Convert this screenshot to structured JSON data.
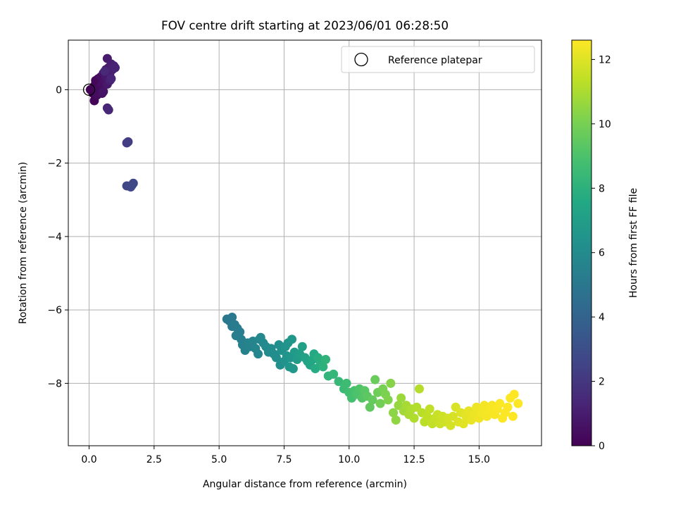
{
  "chart_data": {
    "type": "scatter",
    "title": "FOV centre drift starting at 2023/06/01 06:28:50",
    "xlabel": "Angular distance from reference (arcmin)",
    "ylabel": "Rotation from reference (arcmin)",
    "xlim": [
      -0.8,
      17.4
    ],
    "ylim": [
      -9.7,
      1.35
    ],
    "xticks": [
      0.0,
      2.5,
      5.0,
      7.5,
      10.0,
      12.5,
      15.0
    ],
    "xtick_labels": [
      "0.0",
      "2.5",
      "5.0",
      "7.5",
      "10.0",
      "12.5",
      "15.0"
    ],
    "yticks": [
      0,
      -2,
      -4,
      -6,
      -8
    ],
    "ytick_labels": [
      "0",
      "−2",
      "−4",
      "−6",
      "−8"
    ],
    "grid": true,
    "legend_position": "upper right",
    "legend_entries": [
      "Reference platepar"
    ],
    "reference_point": {
      "x": 0.0,
      "y": 0.0,
      "marker": "open circle"
    },
    "colorbar": {
      "label": "Hours from first FF file",
      "colormap": "viridis",
      "range": [
        0,
        12.6
      ],
      "ticks": [
        0,
        2,
        4,
        6,
        8,
        10,
        12
      ],
      "tick_labels": [
        "0",
        "2",
        "4",
        "6",
        "8",
        "10",
        "12"
      ]
    },
    "series": [
      {
        "color_value": "hours",
        "points": [
          [
            0.05,
            0.0,
            0.0
          ],
          [
            0.15,
            -0.1,
            0.05
          ],
          [
            0.2,
            0.1,
            0.1
          ],
          [
            0.2,
            -0.3,
            0.15
          ],
          [
            0.25,
            0.25,
            0.2
          ],
          [
            0.3,
            0.0,
            0.25
          ],
          [
            0.35,
            0.3,
            0.3
          ],
          [
            0.3,
            -0.15,
            0.35
          ],
          [
            0.4,
            0.05,
            0.4
          ],
          [
            0.45,
            0.35,
            0.45
          ],
          [
            0.5,
            0.15,
            0.5
          ],
          [
            0.5,
            -0.1,
            0.55
          ],
          [
            0.55,
            0.45,
            0.6
          ],
          [
            0.6,
            0.25,
            0.65
          ],
          [
            0.55,
            -0.05,
            0.7
          ],
          [
            0.65,
            0.55,
            0.75
          ],
          [
            0.65,
            0.35,
            0.8
          ],
          [
            0.7,
            0.15,
            0.85
          ],
          [
            0.75,
            0.6,
            0.9
          ],
          [
            0.7,
            0.85,
            0.95
          ],
          [
            0.8,
            0.45,
            1.0
          ],
          [
            0.85,
            0.7,
            1.05
          ],
          [
            0.8,
            0.25,
            1.1
          ],
          [
            0.9,
            0.55,
            1.15
          ],
          [
            0.95,
            0.65,
            1.2
          ],
          [
            1.0,
            0.6,
            1.25
          ],
          [
            0.85,
            0.3,
            1.3
          ],
          [
            0.7,
            -0.5,
            1.35
          ],
          [
            0.75,
            -0.55,
            1.4
          ],
          [
            0.6,
            0.5,
            1.45
          ],
          [
            1.45,
            -1.45,
            2.2
          ],
          [
            1.5,
            -1.42,
            2.25
          ],
          [
            1.45,
            -2.62,
            2.6
          ],
          [
            1.6,
            -2.65,
            2.65
          ],
          [
            1.7,
            -2.55,
            2.7
          ],
          [
            1.65,
            -2.6,
            2.75
          ],
          [
            5.3,
            -6.25,
            5.0
          ],
          [
            5.4,
            -6.3,
            5.05
          ],
          [
            5.5,
            -6.2,
            5.1
          ],
          [
            5.5,
            -6.45,
            5.15
          ],
          [
            5.6,
            -6.4,
            5.2
          ],
          [
            5.7,
            -6.5,
            5.25
          ],
          [
            5.65,
            -6.7,
            5.3
          ],
          [
            5.8,
            -6.6,
            5.35
          ],
          [
            5.85,
            -6.8,
            5.4
          ],
          [
            5.9,
            -6.95,
            5.45
          ],
          [
            6.0,
            -7.1,
            5.5
          ],
          [
            6.1,
            -6.9,
            5.55
          ],
          [
            6.2,
            -7.0,
            5.6
          ],
          [
            6.3,
            -6.85,
            5.65
          ],
          [
            6.4,
            -7.05,
            5.7
          ],
          [
            6.5,
            -7.2,
            5.75
          ],
          [
            6.55,
            -6.8,
            5.8
          ],
          [
            6.6,
            -6.75,
            5.85
          ],
          [
            6.7,
            -6.9,
            5.9
          ],
          [
            6.8,
            -7.0,
            5.95
          ],
          [
            6.9,
            -7.15,
            6.0
          ],
          [
            7.0,
            -7.05,
            6.05
          ],
          [
            7.1,
            -7.2,
            6.1
          ],
          [
            7.2,
            -7.3,
            6.15
          ],
          [
            7.3,
            -6.95,
            6.2
          ],
          [
            7.35,
            -7.5,
            6.25
          ],
          [
            7.4,
            -7.1,
            6.3
          ],
          [
            7.5,
            -7.4,
            6.35
          ],
          [
            7.55,
            -7.0,
            6.4
          ],
          [
            7.6,
            -7.25,
            6.45
          ],
          [
            7.65,
            -6.9,
            6.5
          ],
          [
            7.7,
            -7.55,
            6.55
          ],
          [
            7.75,
            -7.3,
            6.6
          ],
          [
            7.8,
            -6.8,
            6.65
          ],
          [
            7.85,
            -7.6,
            6.7
          ],
          [
            7.9,
            -7.15,
            6.8
          ],
          [
            8.0,
            -7.35,
            6.9
          ],
          [
            8.1,
            -7.2,
            7.0
          ],
          [
            8.2,
            -7.0,
            7.1
          ],
          [
            8.3,
            -7.3,
            7.2
          ],
          [
            8.4,
            -7.4,
            7.3
          ],
          [
            8.5,
            -7.5,
            7.4
          ],
          [
            8.6,
            -7.35,
            7.5
          ],
          [
            8.65,
            -7.2,
            7.6
          ],
          [
            8.7,
            -7.6,
            7.7
          ],
          [
            8.8,
            -7.3,
            7.8
          ],
          [
            8.9,
            -7.45,
            7.9
          ],
          [
            9.0,
            -7.55,
            8.0
          ],
          [
            9.1,
            -7.35,
            8.1
          ],
          [
            9.2,
            -7.8,
            8.2
          ],
          [
            9.4,
            -7.75,
            8.3
          ],
          [
            9.6,
            -7.95,
            8.4
          ],
          [
            9.8,
            -8.15,
            8.5
          ],
          [
            9.9,
            -8.0,
            8.6
          ],
          [
            10.0,
            -8.25,
            8.7
          ],
          [
            10.1,
            -8.4,
            8.8
          ],
          [
            10.2,
            -8.2,
            8.9
          ],
          [
            10.3,
            -8.3,
            9.0
          ],
          [
            10.4,
            -8.15,
            9.1
          ],
          [
            10.5,
            -8.4,
            9.2
          ],
          [
            10.6,
            -8.2,
            9.3
          ],
          [
            10.7,
            -8.35,
            9.4
          ],
          [
            10.8,
            -8.65,
            9.5
          ],
          [
            10.9,
            -8.45,
            9.6
          ],
          [
            11.0,
            -7.9,
            9.7
          ],
          [
            11.1,
            -8.25,
            9.8
          ],
          [
            11.2,
            -8.55,
            9.9
          ],
          [
            11.3,
            -8.15,
            10.0
          ],
          [
            11.4,
            -8.3,
            10.1
          ],
          [
            11.5,
            -8.45,
            10.2
          ],
          [
            11.6,
            -8.0,
            10.3
          ],
          [
            11.7,
            -8.8,
            10.4
          ],
          [
            11.8,
            -9.0,
            10.5
          ],
          [
            11.9,
            -8.6,
            10.6
          ],
          [
            12.0,
            -8.4,
            10.7
          ],
          [
            12.1,
            -8.75,
            10.8
          ],
          [
            12.2,
            -8.6,
            10.9
          ],
          [
            12.3,
            -8.85,
            11.0
          ],
          [
            12.4,
            -8.7,
            11.05
          ],
          [
            12.5,
            -8.95,
            11.1
          ],
          [
            12.6,
            -8.65,
            11.15
          ],
          [
            12.7,
            -8.15,
            11.2
          ],
          [
            12.8,
            -8.8,
            11.25
          ],
          [
            12.9,
            -9.05,
            11.3
          ],
          [
            13.0,
            -8.9,
            11.35
          ],
          [
            13.1,
            -8.7,
            11.4
          ],
          [
            13.2,
            -9.1,
            11.45
          ],
          [
            13.3,
            -8.95,
            11.5
          ],
          [
            13.4,
            -8.85,
            11.55
          ],
          [
            13.5,
            -9.1,
            11.6
          ],
          [
            13.6,
            -8.9,
            11.65
          ],
          [
            13.7,
            -9.05,
            11.7
          ],
          [
            13.8,
            -8.95,
            11.75
          ],
          [
            13.9,
            -9.15,
            11.8
          ],
          [
            14.0,
            -8.9,
            11.85
          ],
          [
            14.1,
            -8.65,
            11.9
          ],
          [
            14.2,
            -9.05,
            11.95
          ],
          [
            14.3,
            -8.8,
            12.0
          ],
          [
            14.4,
            -9.1,
            12.05
          ],
          [
            14.5,
            -8.9,
            12.1
          ],
          [
            14.6,
            -8.75,
            12.15
          ],
          [
            14.7,
            -9.0,
            12.2
          ],
          [
            14.8,
            -8.85,
            12.25
          ],
          [
            14.9,
            -8.65,
            12.3
          ],
          [
            15.0,
            -8.95,
            12.35
          ],
          [
            15.1,
            -8.8,
            12.4
          ],
          [
            15.2,
            -8.6,
            12.42
          ],
          [
            15.3,
            -8.9,
            12.44
          ],
          [
            15.4,
            -8.75,
            12.46
          ],
          [
            15.5,
            -8.6,
            12.48
          ],
          [
            15.6,
            -8.85,
            12.5
          ],
          [
            15.7,
            -8.7,
            12.52
          ],
          [
            15.8,
            -8.55,
            12.54
          ],
          [
            15.9,
            -8.95,
            12.56
          ],
          [
            16.0,
            -8.8,
            12.57
          ],
          [
            16.1,
            -8.65,
            12.58
          ],
          [
            16.2,
            -8.4,
            12.59
          ],
          [
            16.3,
            -8.9,
            12.6
          ],
          [
            16.35,
            -8.3,
            12.6
          ],
          [
            16.5,
            -8.55,
            12.6
          ]
        ]
      }
    ]
  }
}
